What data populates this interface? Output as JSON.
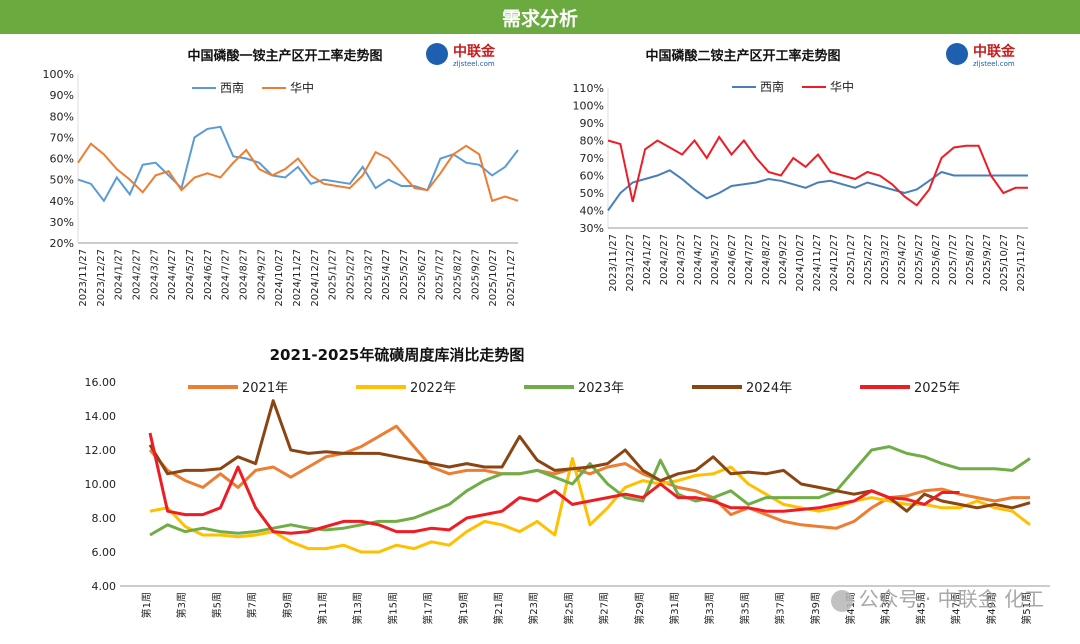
{
  "header": {
    "title": "需求分析"
  },
  "logo": {
    "name": "中联金",
    "url": "zljsteel.com"
  },
  "watermark": "公众号 · 中联金 化工",
  "chart_data": [
    {
      "type": "line",
      "title": "中国磷酸一铵主产区开工率走势图",
      "y_ticks": [
        "100%",
        "90%",
        "80%",
        "70%",
        "60%",
        "50%",
        "40%",
        "30%",
        "20%"
      ],
      "ylim": [
        20,
        100
      ],
      "x_ticks": [
        "2023/11/27",
        "2023/12/27",
        "2024/1/27",
        "2024/2/27",
        "2024/3/27",
        "2024/4/27",
        "2024/5/27",
        "2024/6/27",
        "2024/7/27",
        "2024/8/27",
        "2024/9/27",
        "2024/10/27",
        "2024/11/27",
        "2024/12/27",
        "2025/1/27",
        "2025/2/27",
        "2025/3/27",
        "2025/4/27",
        "2025/5/27",
        "2025/6/27",
        "2025/7/27",
        "2025/8/27",
        "2025/9/27",
        "2025/10/27",
        "2025/11/27"
      ],
      "series": [
        {
          "name": "西南",
          "color": "#5b9bd5",
          "values": [
            50,
            48,
            40,
            51,
            43,
            57,
            58,
            52,
            46,
            70,
            74,
            75,
            61,
            60,
            58,
            52,
            51,
            56,
            48,
            50,
            49,
            48,
            56,
            46,
            50,
            47,
            47,
            45,
            60,
            62,
            58,
            57,
            52,
            56,
            64
          ]
        },
        {
          "name": "华中",
          "color": "#ed7d31",
          "values": [
            58,
            67,
            62,
            55,
            50,
            44,
            52,
            54,
            45,
            51,
            53,
            51,
            58,
            64,
            55,
            52,
            55,
            60,
            52,
            48,
            47,
            46,
            52,
            63,
            60,
            53,
            46,
            45,
            53,
            62,
            66,
            62,
            40,
            42,
            40
          ]
        }
      ]
    },
    {
      "type": "line",
      "title": "中国磷酸二铵主产区开工率走势图",
      "y_ticks": [
        "110%",
        "100%",
        "90%",
        "80%",
        "70%",
        "60%",
        "50%",
        "40%",
        "30%"
      ],
      "ylim": [
        30,
        110
      ],
      "x_ticks": [
        "2023/11/27",
        "2023/12/27",
        "2024/1/27",
        "2024/2/27",
        "2024/3/27",
        "2024/4/27",
        "2024/5/27",
        "2024/6/27",
        "2024/7/27",
        "2024/8/27",
        "2024/9/27",
        "2024/10/27",
        "2024/11/27",
        "2024/12/27",
        "2025/1/27",
        "2025/2/27",
        "2025/3/27",
        "2025/4/27",
        "2025/5/27",
        "2025/6/27",
        "2025/7/27",
        "2025/8/27",
        "2025/9/27",
        "2025/10/27",
        "2025/11/27"
      ],
      "series": [
        {
          "name": "西南",
          "color": "#4a7ebb",
          "values": [
            40,
            50,
            56,
            58,
            60,
            63,
            58,
            52,
            47,
            50,
            54,
            55,
            56,
            58,
            57,
            55,
            53,
            56,
            57,
            55,
            53,
            56,
            54,
            52,
            50,
            52,
            57,
            62,
            60,
            60,
            60,
            60,
            60,
            60,
            60
          ]
        },
        {
          "name": "华中",
          "color": "#ee1c25",
          "values": [
            80,
            78,
            45,
            75,
            80,
            76,
            72,
            80,
            70,
            82,
            72,
            80,
            70,
            62,
            60,
            70,
            65,
            72,
            62,
            60,
            58,
            62,
            60,
            55,
            48,
            43,
            52,
            70,
            76,
            77,
            77,
            60,
            50,
            53,
            53
          ]
        }
      ]
    },
    {
      "type": "line",
      "title": "2021-2025年硫磺周度库消比走势图",
      "y_ticks": [
        "16.00",
        "14.00",
        "12.00",
        "10.00",
        "8.00",
        "6.00",
        "4.00"
      ],
      "ylim": [
        4,
        16
      ],
      "x_ticks": [
        "第1周",
        "第3周",
        "第5周",
        "第7周",
        "第9周",
        "第11周",
        "第13周",
        "第15周",
        "第17周",
        "第19周",
        "第21周",
        "第23周",
        "第25周",
        "第27周",
        "第29周",
        "第31周",
        "第33周",
        "第35周",
        "第37周",
        "第39周",
        "第41周",
        "第43周",
        "第45周",
        "第47周",
        "第49周",
        "第51周"
      ],
      "series": [
        {
          "name": "2021年",
          "color": "#ed7d31",
          "values": [
            12.0,
            10.8,
            10.2,
            9.8,
            10.6,
            9.8,
            10.8,
            11.0,
            10.4,
            11.0,
            11.6,
            11.8,
            12.2,
            12.8,
            13.4,
            12.2,
            11.0,
            10.6,
            10.8,
            10.8,
            10.6,
            10.6,
            10.8,
            10.6,
            10.9,
            10.6,
            11.0,
            11.2,
            10.6,
            10.2,
            9.8,
            9.6,
            9.2,
            8.2,
            8.6,
            8.2,
            7.8,
            7.6,
            7.5,
            7.4,
            7.8,
            8.6,
            9.2,
            9.3,
            9.6,
            9.7,
            9.4,
            9.2,
            9.0,
            9.2,
            9.2
          ]
        },
        {
          "name": "2022年",
          "color": "#ffc000",
          "values": [
            8.4,
            8.6,
            7.5,
            7.0,
            7.0,
            6.9,
            7.0,
            7.2,
            6.6,
            6.2,
            6.2,
            6.4,
            6.0,
            6.0,
            6.4,
            6.2,
            6.6,
            6.4,
            7.2,
            7.8,
            7.6,
            7.2,
            7.8,
            7.0,
            11.5,
            7.6,
            8.6,
            9.8,
            10.2,
            10.0,
            10.2,
            10.5,
            10.6,
            11.0,
            10.0,
            9.4,
            8.8,
            8.6,
            8.4,
            8.6,
            9.0,
            9.2,
            9.0,
            8.8,
            8.8,
            8.6,
            8.6,
            9.0,
            8.6,
            8.4,
            7.6
          ]
        },
        {
          "name": "2023年",
          "color": "#70ad47",
          "values": [
            7.0,
            7.6,
            7.2,
            7.4,
            7.2,
            7.1,
            7.2,
            7.4,
            7.6,
            7.4,
            7.3,
            7.4,
            7.6,
            7.8,
            7.8,
            8.0,
            8.4,
            8.8,
            9.6,
            10.2,
            10.6,
            10.6,
            10.8,
            10.4,
            10.0,
            11.2,
            10.0,
            9.2,
            9.0,
            11.4,
            9.4,
            9.0,
            9.2,
            9.6,
            8.8,
            9.2,
            9.2,
            9.2,
            9.2,
            9.6,
            10.8,
            12.0,
            12.2,
            11.8,
            11.6,
            11.2,
            10.9,
            10.9,
            10.9,
            10.8,
            11.5
          ]
        },
        {
          "name": "2024年",
          "color": "#8b4513",
          "values": [
            12.3,
            10.6,
            10.8,
            10.8,
            10.9,
            11.6,
            11.2,
            14.9,
            12.0,
            11.8,
            11.9,
            11.8,
            11.8,
            11.8,
            11.6,
            11.4,
            11.2,
            11.0,
            11.2,
            11.0,
            11.0,
            12.8,
            11.4,
            10.8,
            10.9,
            11.0,
            11.2,
            12.0,
            10.8,
            10.2,
            10.6,
            10.8,
            11.6,
            10.6,
            10.7,
            10.6,
            10.8,
            10.0,
            9.8,
            9.6,
            9.4,
            9.6,
            9.2,
            8.4,
            9.4,
            9.0,
            8.8,
            8.6,
            8.8,
            8.6,
            8.9
          ]
        },
        {
          "name": "2025年",
          "color": "#ee1c25",
          "values": [
            13.0,
            8.4,
            8.2,
            8.2,
            8.6,
            11.0,
            8.6,
            7.2,
            7.1,
            7.2,
            7.5,
            7.8,
            7.8,
            7.6,
            7.2,
            7.2,
            7.4,
            7.3,
            8.0,
            8.2,
            8.4,
            9.2,
            9.0,
            9.6,
            8.8,
            9.0,
            9.2,
            9.4,
            9.2,
            10.0,
            9.2,
            9.2,
            9.0,
            8.6,
            8.6,
            8.4,
            8.4,
            8.5,
            8.6,
            8.8,
            9.0,
            9.6,
            9.2,
            9.1,
            8.8,
            9.5,
            9.5
          ]
        }
      ]
    }
  ]
}
